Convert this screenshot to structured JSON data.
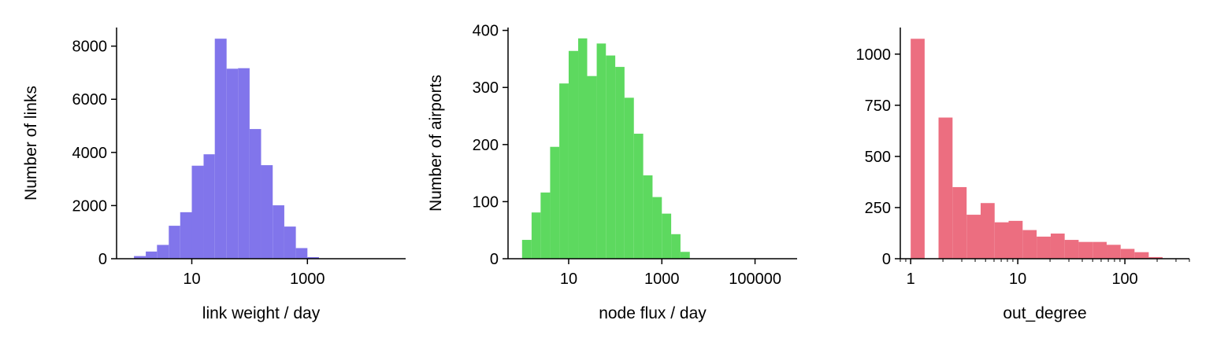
{
  "chart_data": [
    {
      "type": "bar",
      "title": "",
      "xlabel": "link weight / day",
      "ylabel": "Number of links",
      "xscale": "log",
      "xlim": [
        0.5,
        50000
      ],
      "ylim": [
        0,
        8700
      ],
      "xticks": [
        {
          "value": 10,
          "label": "10"
        },
        {
          "value": 1000,
          "label": "1000"
        }
      ],
      "yticks": [
        {
          "value": 0,
          "label": "0"
        },
        {
          "value": 2000,
          "label": "2000"
        },
        {
          "value": 4000,
          "label": "4000"
        },
        {
          "value": 6000,
          "label": "6000"
        },
        {
          "value": 8000,
          "label": "8000"
        }
      ],
      "minor_xticks": false,
      "color": "#8175eb",
      "bins": [
        {
          "x0": 1.0,
          "x1": 1.6,
          "value": 100
        },
        {
          "x0": 1.6,
          "x1": 2.5,
          "value": 270
        },
        {
          "x0": 2.5,
          "x1": 4.0,
          "value": 520
        },
        {
          "x0": 4.0,
          "x1": 6.3,
          "value": 1240
        },
        {
          "x0": 6.3,
          "x1": 10,
          "value": 1750
        },
        {
          "x0": 10,
          "x1": 16,
          "value": 3500
        },
        {
          "x0": 16,
          "x1": 25,
          "value": 3930
        },
        {
          "x0": 25,
          "x1": 40,
          "value": 8280
        },
        {
          "x0": 40,
          "x1": 63,
          "value": 7150
        },
        {
          "x0": 63,
          "x1": 100,
          "value": 7170
        },
        {
          "x0": 100,
          "x1": 158,
          "value": 4880
        },
        {
          "x0": 158,
          "x1": 251,
          "value": 3520
        },
        {
          "x0": 251,
          "x1": 398,
          "value": 2010
        },
        {
          "x0": 398,
          "x1": 631,
          "value": 1210
        },
        {
          "x0": 631,
          "x1": 1000,
          "value": 400
        },
        {
          "x0": 1000,
          "x1": 1585,
          "value": 60
        }
      ]
    },
    {
      "type": "bar",
      "title": "",
      "xlabel": "node flux / day",
      "ylabel": "Number of airports",
      "xscale": "log",
      "xlim": [
        0.5,
        800000
      ],
      "ylim": [
        0,
        405
      ],
      "xticks": [
        {
          "value": 10,
          "label": "10"
        },
        {
          "value": 1000,
          "label": "1000"
        },
        {
          "value": 100000,
          "label": "100000"
        }
      ],
      "yticks": [
        {
          "value": 0,
          "label": "0"
        },
        {
          "value": 100,
          "label": "100"
        },
        {
          "value": 200,
          "label": "200"
        },
        {
          "value": 300,
          "label": "300"
        },
        {
          "value": 400,
          "label": "400"
        }
      ],
      "minor_xticks": false,
      "color": "#5dd95f",
      "bins": [
        {
          "x0": 1.0,
          "x1": 1.6,
          "value": 33
        },
        {
          "x0": 1.6,
          "x1": 2.5,
          "value": 81
        },
        {
          "x0": 2.5,
          "x1": 4.0,
          "value": 116
        },
        {
          "x0": 4.0,
          "x1": 6.3,
          "value": 196
        },
        {
          "x0": 6.3,
          "x1": 10,
          "value": 307
        },
        {
          "x0": 10,
          "x1": 16,
          "value": 364
        },
        {
          "x0": 16,
          "x1": 25,
          "value": 386
        },
        {
          "x0": 25,
          "x1": 40,
          "value": 320
        },
        {
          "x0": 40,
          "x1": 63,
          "value": 377
        },
        {
          "x0": 63,
          "x1": 100,
          "value": 356
        },
        {
          "x0": 100,
          "x1": 158,
          "value": 336
        },
        {
          "x0": 158,
          "x1": 251,
          "value": 282
        },
        {
          "x0": 251,
          "x1": 398,
          "value": 219
        },
        {
          "x0": 398,
          "x1": 631,
          "value": 146
        },
        {
          "x0": 631,
          "x1": 1000,
          "value": 108
        },
        {
          "x0": 1000,
          "x1": 1585,
          "value": 79
        },
        {
          "x0": 1585,
          "x1": 2512,
          "value": 43
        },
        {
          "x0": 2512,
          "x1": 3981,
          "value": 12
        }
      ]
    },
    {
      "type": "bar",
      "title": "",
      "xlabel": "out_degree",
      "ylabel": "",
      "xscale": "log",
      "xlim": [
        0.8,
        400
      ],
      "ylim": [
        0,
        1130
      ],
      "xticks": [
        {
          "value": 1,
          "label": "1"
        },
        {
          "value": 10,
          "label": "10"
        },
        {
          "value": 100,
          "label": "100"
        }
      ],
      "yticks": [
        {
          "value": 0,
          "label": "0"
        },
        {
          "value": 250,
          "label": "250"
        },
        {
          "value": 500,
          "label": "500"
        },
        {
          "value": 750,
          "label": "750"
        },
        {
          "value": 1000,
          "label": "1000"
        }
      ],
      "minor_xticks": true,
      "color": "#ec6e80",
      "bins": [
        {
          "x0": 1.0,
          "x1": 1.35,
          "value": 1075
        },
        {
          "x0": 1.35,
          "x1": 1.82,
          "value": 0
        },
        {
          "x0": 1.82,
          "x1": 2.46,
          "value": 690
        },
        {
          "x0": 2.46,
          "x1": 3.33,
          "value": 350
        },
        {
          "x0": 3.33,
          "x1": 4.5,
          "value": 215
        },
        {
          "x0": 4.5,
          "x1": 6.08,
          "value": 272
        },
        {
          "x0": 6.08,
          "x1": 8.21,
          "value": 178
        },
        {
          "x0": 8.21,
          "x1": 11.1,
          "value": 185
        },
        {
          "x0": 11.1,
          "x1": 15.0,
          "value": 140
        },
        {
          "x0": 15.0,
          "x1": 20.3,
          "value": 108
        },
        {
          "x0": 20.3,
          "x1": 27.4,
          "value": 123
        },
        {
          "x0": 27.4,
          "x1": 37.0,
          "value": 92
        },
        {
          "x0": 37.0,
          "x1": 50.0,
          "value": 82
        },
        {
          "x0": 50.0,
          "x1": 67.6,
          "value": 82
        },
        {
          "x0": 67.6,
          "x1": 91.3,
          "value": 68
        },
        {
          "x0": 91.3,
          "x1": 123,
          "value": 48
        },
        {
          "x0": 123,
          "x1": 167,
          "value": 32
        },
        {
          "x0": 167,
          "x1": 225,
          "value": 8
        }
      ]
    }
  ]
}
